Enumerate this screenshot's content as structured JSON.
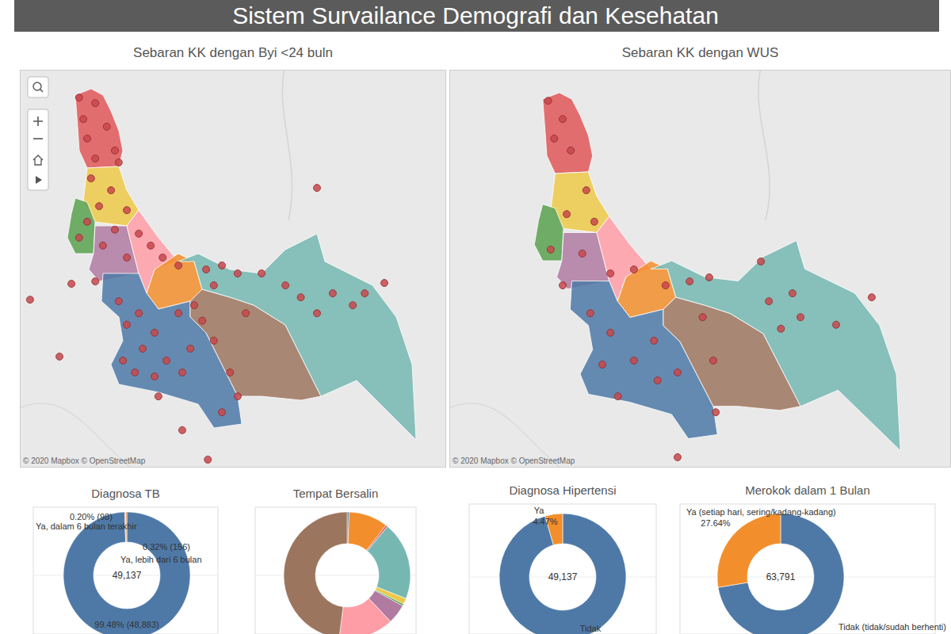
{
  "header": {
    "title": "Sistem Survailance Demografi dan Kesehatan"
  },
  "chart_data": [
    {
      "type": "map",
      "title": "Sebaran KK dengan Byi <24 buln",
      "x": [
        13.9,
        17.7,
        14.9,
        20.4,
        15.8,
        22.3,
        17.7,
        23.2,
        16.7,
        21.4,
        18.6,
        25.1,
        15.8,
        22.3,
        27.9,
        13.9,
        19.5,
        30.7,
        33.5,
        25.1,
        37.2,
        43.7,
        47.4,
        51.1,
        45.5,
        56.7,
        62.3,
        65.9,
        69.7,
        73.4,
        78.1,
        80.9,
        85.5,
        69.7,
        2.4,
        12.1,
        9.3,
        23.2,
        27.9,
        25.1,
        31.6,
        28.8,
        24.2,
        34.4,
        38.1,
        40.0,
        42.8,
        40.9,
        37.2,
        45.5,
        49.3,
        51.1,
        47.4,
        38.1,
        44.1,
        32.5,
        27.0,
        31.6,
        53.0,
        17.7
      ],
      "y": [
        93.0,
        91.6,
        87.6,
        85.7,
        82.7,
        79.7,
        77.7,
        76.7,
        72.7,
        69.7,
        65.7,
        64.7,
        61.8,
        59.8,
        58.8,
        57.8,
        55.8,
        55.8,
        52.8,
        52.8,
        50.8,
        49.8,
        50.8,
        48.8,
        45.8,
        48.8,
        45.8,
        42.8,
        38.8,
        43.8,
        40.8,
        43.8,
        46.4,
        70.3,
        42.2,
        46.2,
        27.9,
        41.8,
        38.8,
        35.9,
        33.9,
        29.9,
        26.9,
        26.9,
        23.9,
        29.9,
        36.9,
        40.8,
        38.8,
        31.9,
        23.9,
        17.9,
        13.9,
        9.4,
        2.0,
        17.9,
        23.9,
        22.9,
        38.8,
        46.8
      ],
      "xlim": [
        0,
        100
      ],
      "ylim": [
        0,
        100
      ],
      "tick_labels": false,
      "color": "#c8484c",
      "marker": "circle",
      "attribution": "© 2020 Mapbox © OpenStreetMap"
    },
    {
      "type": "map",
      "title": "Sebaran KK dengan WUS",
      "x": [
        19.7,
        22.6,
        20.9,
        24.2,
        27.3,
        23.4,
        28.9,
        20.2,
        26.5,
        32.1,
        36.8,
        43.1,
        47.9,
        51.8,
        50.5,
        63.7,
        66.1,
        70.0,
        77.1,
        84.2,
        28.1,
        32.1,
        30.5,
        36.8,
        41.5,
        45.5,
        40.8,
        52.6,
        53.1,
        45.5,
        33.6,
        62.1,
        68.4,
        22.6
      ],
      "y": [
        92.2,
        87.6,
        82.7,
        79.7,
        69.7,
        63.7,
        61.8,
        54.8,
        53.8,
        48.8,
        49.8,
        45.8,
        46.8,
        47.8,
        37.8,
        41.8,
        34.9,
        37.8,
        35.9,
        42.8,
        38.8,
        33.9,
        25.9,
        26.9,
        21.9,
        23.9,
        31.9,
        26.9,
        13.9,
        2.6,
        17.9,
        51.8,
        43.8,
        45.8
      ],
      "xlim": [
        0,
        100
      ],
      "ylim": [
        0,
        100
      ],
      "tick_labels": false,
      "color": "#c8484c",
      "marker": "circle",
      "attribution": "© 2020 Mapbox © OpenStreetMap"
    },
    {
      "type": "pie",
      "title": "Diagnosa TB",
      "categories": [
        null,
        "Ya, dalam 6 bulan terakhir",
        "Ya, lebih dari 6 bulan"
      ],
      "values": [
        48883,
        98,
        156
      ],
      "value_labels": [
        "99.48% (48,883)",
        "0.20% (98)",
        "0.32% (156)"
      ],
      "colors": [
        "#4e79a7",
        "#e15759",
        "#f28e2b"
      ],
      "data_labels": true,
      "total_label": "49,137"
    },
    {
      "type": "pie",
      "title": "Tempat Bersalin",
      "categories": [
        null,
        null,
        null,
        null,
        null,
        null,
        null,
        null,
        null
      ],
      "values": [
        0.5,
        10,
        0.5,
        20,
        1.5,
        0.5,
        5,
        14,
        48
      ],
      "colors": [
        "#4e79a7",
        "#f28e2b",
        "#e15759",
        "#76b7b2",
        "#edc948",
        "#59a14f",
        "#b07aa1",
        "#ff9da7",
        "#9c755f"
      ],
      "data_labels": false
    },
    {
      "type": "pie",
      "title": "Diagnosa Hipertensi",
      "categories": [
        "Tidak",
        "Ya"
      ],
      "values": [
        95.53,
        4.47
      ],
      "value_labels": [
        null,
        "4.47%"
      ],
      "colors": [
        "#4e79a7",
        "#f28e2b"
      ],
      "data_labels": true,
      "total_label": "49,137"
    },
    {
      "type": "pie",
      "title": "Merokok dalam 1 Bulan",
      "categories": [
        "Tidak (tidak/sudah berhenti)",
        "Ya (setiap hari, sering/kadang-kadang)"
      ],
      "values": [
        72.36,
        27.64
      ],
      "value_labels": [
        null,
        "27.64%"
      ],
      "colors": [
        "#4e79a7",
        "#f28e2b"
      ],
      "data_labels": true,
      "total_label": "63,791"
    }
  ]
}
